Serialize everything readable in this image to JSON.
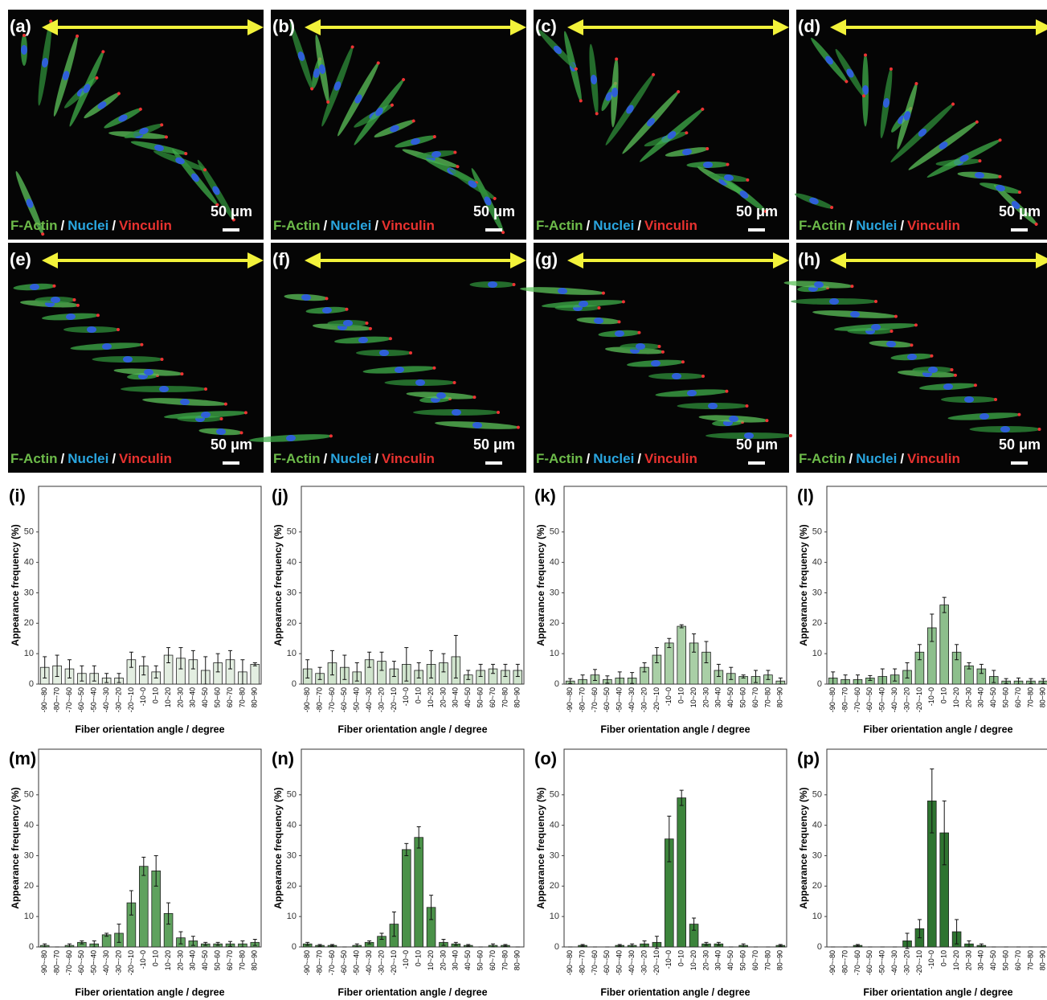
{
  "images": [
    {
      "label": "(a)",
      "stains": [
        "F-Actin",
        "Nuclei",
        "Vinculin"
      ],
      "separator": "/",
      "scale": "50 μm"
    },
    {
      "label": "(b)",
      "stains": [
        "F-Actin",
        "Nuclei",
        "Vinculin"
      ],
      "separator": "/",
      "scale": "50 μm"
    },
    {
      "label": "(c)",
      "stains": [
        "F-Actin",
        "Nuclei",
        "Vinculin"
      ],
      "separator": "/",
      "scale": "50 μm"
    },
    {
      "label": "(d)",
      "stains": [
        "F-Actin",
        "Nuclei",
        "Vinculin"
      ],
      "separator": "/",
      "scale": "50 μm"
    },
    {
      "label": "(e)",
      "stains": [
        "F-Actin",
        "Nuclei",
        "Vinculin"
      ],
      "separator": "/",
      "scale": "50 μm"
    },
    {
      "label": "(f)",
      "stains": [
        "F-Actin",
        "Nuclei",
        "Vinculin"
      ],
      "separator": "/",
      "scale": "50 μm"
    },
    {
      "label": "(g)",
      "stains": [
        "F-Actin",
        "Nuclei",
        "Vinculin"
      ],
      "separator": "/",
      "scale": "50 μm"
    },
    {
      "label": "(h)",
      "stains": [
        "F-Actin",
        "Nuclei",
        "Vinculin"
      ],
      "separator": "/",
      "scale": "50 μm"
    }
  ],
  "chart_data": [
    {
      "type": "bar",
      "label": "(i)",
      "ylabel": "Appearance frequency (%)",
      "xlabel": "Fiber orientation angle / degree",
      "color": "#e3eee1",
      "categories": [
        "-90~-80",
        "-80~-70",
        "-70~-60",
        "-60~-50",
        "-50~-40",
        "-40~-30",
        "-30~-20",
        "-20~-10",
        "-10~0",
        "0~10",
        "10~20",
        "20~30",
        "30~40",
        "40~50",
        "50~60",
        "60~70",
        "70~80",
        "80~90"
      ],
      "values": [
        5.5,
        6,
        5,
        3.5,
        3.5,
        2,
        2,
        8,
        6,
        4,
        9.5,
        8.5,
        8,
        4.5,
        7,
        8,
        4,
        6.5
      ],
      "errors": [
        3.5,
        3.5,
        3,
        2.5,
        2.5,
        1.5,
        1.5,
        2.5,
        3,
        2,
        2.5,
        3.5,
        3,
        4.5,
        3,
        3,
        4,
        0.5
      ],
      "ylim": [
        0,
        65
      ],
      "yticks": [
        0,
        10,
        20,
        30,
        40,
        50
      ]
    },
    {
      "type": "bar",
      "label": "(j)",
      "ylabel": "Appearance frequency (%)",
      "xlabel": "Fiber orientation angle / degree",
      "color": "#d0e4cd",
      "categories": [
        "-90~-80",
        "-80~-70",
        "-70~-60",
        "-60~-50",
        "-50~-40",
        "-40~-30",
        "-30~-20",
        "-20~-10",
        "-10~0",
        "0~10",
        "10~20",
        "20~30",
        "30~40",
        "40~50",
        "50~60",
        "60~70",
        "70~80",
        "80~90"
      ],
      "values": [
        5,
        3.5,
        7,
        5.5,
        4,
        8,
        7.5,
        5,
        6.5,
        4.5,
        6.5,
        7,
        9,
        3,
        4.5,
        5,
        4.5,
        4.5
      ],
      "errors": [
        3,
        2,
        4,
        4,
        3,
        2.5,
        3,
        2.5,
        5.5,
        2.5,
        4.5,
        3,
        7,
        1.5,
        2,
        1.5,
        2,
        2
      ],
      "ylim": [
        0,
        65
      ],
      "yticks": [
        0,
        10,
        20,
        30,
        40,
        50
      ]
    },
    {
      "type": "bar",
      "label": "(k)",
      "ylabel": "Appearance frequency (%)",
      "xlabel": "Fiber orientation angle / degree",
      "color": "#a9cfa6",
      "categories": [
        "-90~-80",
        "-80~-70",
        "-70~-60",
        "-60~-50",
        "-50~-40",
        "-40~-30",
        "-30~-20",
        "-20~-10",
        "-10~0",
        "0~10",
        "10~20",
        "20~30",
        "30~40",
        "40~50",
        "50~60",
        "60~70",
        "70~80",
        "80~90"
      ],
      "values": [
        1,
        1.5,
        3,
        1.5,
        2,
        2,
        5.5,
        9.5,
        13.5,
        19,
        13.5,
        10.5,
        4.5,
        3.5,
        2.5,
        2.5,
        3,
        1
      ],
      "errors": [
        0.8,
        1.5,
        1.8,
        1.2,
        2,
        1.8,
        1.5,
        2.5,
        1.5,
        0.5,
        3,
        3.5,
        2,
        2,
        0.5,
        2,
        1.5,
        1
      ],
      "ylim": [
        0,
        65
      ],
      "yticks": [
        0,
        10,
        20,
        30,
        40,
        50
      ]
    },
    {
      "type": "bar",
      "label": "(l)",
      "ylabel": "Appearance frequency (%)",
      "xlabel": "Fiber orientation angle / degree",
      "color": "#8dbf8c",
      "categories": [
        "-90~-80",
        "-80~-70",
        "-70~-60",
        "-60~-50",
        "-50~-40",
        "-40~-30",
        "-30~-20",
        "-20~-10",
        "-10~0",
        "0~10",
        "10~20",
        "20~30",
        "30~40",
        "40~50",
        "50~60",
        "60~70",
        "70~80",
        "80~90"
      ],
      "values": [
        2,
        1.5,
        1.5,
        2,
        2.5,
        3,
        4.5,
        10.5,
        18.5,
        26,
        10.5,
        6,
        5,
        2.5,
        1,
        1,
        1,
        1
      ],
      "errors": [
        2,
        1.5,
        1.5,
        0.8,
        2.5,
        2,
        2.5,
        2.5,
        4.5,
        2.5,
        2.5,
        1,
        1.5,
        2,
        0.8,
        1,
        0.8,
        0.8
      ],
      "ylim": [
        0,
        65
      ],
      "yticks": [
        0,
        10,
        20,
        30,
        40,
        50
      ]
    },
    {
      "type": "bar",
      "label": "(m)",
      "ylabel": "Appearance frequency (%)",
      "xlabel": "Fiber orientation angle / degree",
      "color": "#5fa25e",
      "categories": [
        "-90~-80",
        "-80~-70",
        "-70~-60",
        "-60~-50",
        "-50~-40",
        "-40~-30",
        "-30~-20",
        "-20~-10",
        "-10~0",
        "0~10",
        "10~20",
        "20~30",
        "30~40",
        "40~50",
        "50~60",
        "60~70",
        "70~80",
        "80~90"
      ],
      "values": [
        0.5,
        0,
        0.5,
        1.5,
        1,
        4,
        4.5,
        14.5,
        26.5,
        25,
        11,
        3,
        2,
        1,
        1,
        1,
        1,
        1.5
      ],
      "errors": [
        0.5,
        0,
        0.5,
        0.5,
        1,
        0.5,
        3,
        4,
        3,
        5,
        3.5,
        2,
        1.5,
        0.5,
        0.5,
        0.8,
        1,
        1
      ],
      "ylim": [
        0,
        65
      ],
      "yticks": [
        0,
        10,
        20,
        30,
        40,
        50
      ]
    },
    {
      "type": "bar",
      "label": "(n)",
      "ylabel": "Appearance frequency (%)",
      "xlabel": "Fiber orientation angle / degree",
      "color": "#4a9148",
      "categories": [
        "-90~-80",
        "-80~-70",
        "-70~-60",
        "-60~-50",
        "-50~-40",
        "-40~-30",
        "-30~-20",
        "-20~-10",
        "-10~0",
        "0~10",
        "10~20",
        "20~30",
        "30~40",
        "40~50",
        "50~60",
        "60~70",
        "70~80",
        "80~90"
      ],
      "values": [
        1,
        0.5,
        0.5,
        0,
        0.5,
        1.5,
        3.5,
        7.5,
        32,
        36,
        13,
        1.5,
        1,
        0.5,
        0,
        0.5,
        0.5,
        0
      ],
      "errors": [
        0.5,
        0.3,
        0.3,
        0,
        0.5,
        0.5,
        1,
        4,
        2,
        3.5,
        4,
        1,
        0.5,
        0.3,
        0,
        0.5,
        0.3,
        0
      ],
      "ylim": [
        0,
        65
      ],
      "yticks": [
        0,
        10,
        20,
        30,
        40,
        50
      ]
    },
    {
      "type": "bar",
      "label": "(o)",
      "ylabel": "Appearance frequency (%)",
      "xlabel": "Fiber orientation angle / degree",
      "color": "#3c843b",
      "categories": [
        "-90~-80",
        "-80~-70",
        "-70~-60",
        "-60~-50",
        "-50~-40",
        "-40~-30",
        "-30~-20",
        "-20~-10",
        "-10~0",
        "0~10",
        "10~20",
        "20~30",
        "30~40",
        "40~50",
        "50~60",
        "60~70",
        "70~80",
        "80~90"
      ],
      "values": [
        0,
        0.5,
        0,
        0,
        0.5,
        0.5,
        1,
        1.5,
        35.5,
        49,
        7.5,
        1,
        1,
        0,
        0.5,
        0,
        0,
        0.5
      ],
      "errors": [
        0,
        0.3,
        0,
        0,
        0.3,
        0.5,
        1,
        2,
        7.5,
        2.5,
        2,
        0.5,
        0.5,
        0,
        0.5,
        0,
        0,
        0.3
      ],
      "ylim": [
        0,
        65
      ],
      "yticks": [
        0,
        10,
        20,
        30,
        40,
        50
      ]
    },
    {
      "type": "bar",
      "label": "(p)",
      "ylabel": "Appearance frequency (%)",
      "xlabel": "Fiber orientation angle / degree",
      "color": "#2e7430",
      "categories": [
        "-90~-80",
        "-80~-70",
        "-70~-60",
        "-60~-50",
        "-50~-40",
        "-40~-30",
        "-30~-20",
        "-20~-10",
        "-10~0",
        "0~10",
        "10~20",
        "20~30",
        "30~40",
        "40~50",
        "50~60",
        "60~70",
        "70~80",
        "80~90"
      ],
      "values": [
        0,
        0,
        0.5,
        0,
        0,
        0,
        2,
        6,
        48,
        37.5,
        5,
        1,
        0.5,
        0,
        0,
        0,
        0,
        0
      ],
      "errors": [
        0,
        0,
        0.3,
        0,
        0,
        0,
        2.5,
        3,
        10.5,
        10.5,
        4,
        1,
        0.5,
        0,
        0,
        0,
        0,
        0
      ],
      "ylim": [
        0,
        65
      ],
      "yticks": [
        0,
        10,
        20,
        30,
        40,
        50
      ]
    }
  ]
}
